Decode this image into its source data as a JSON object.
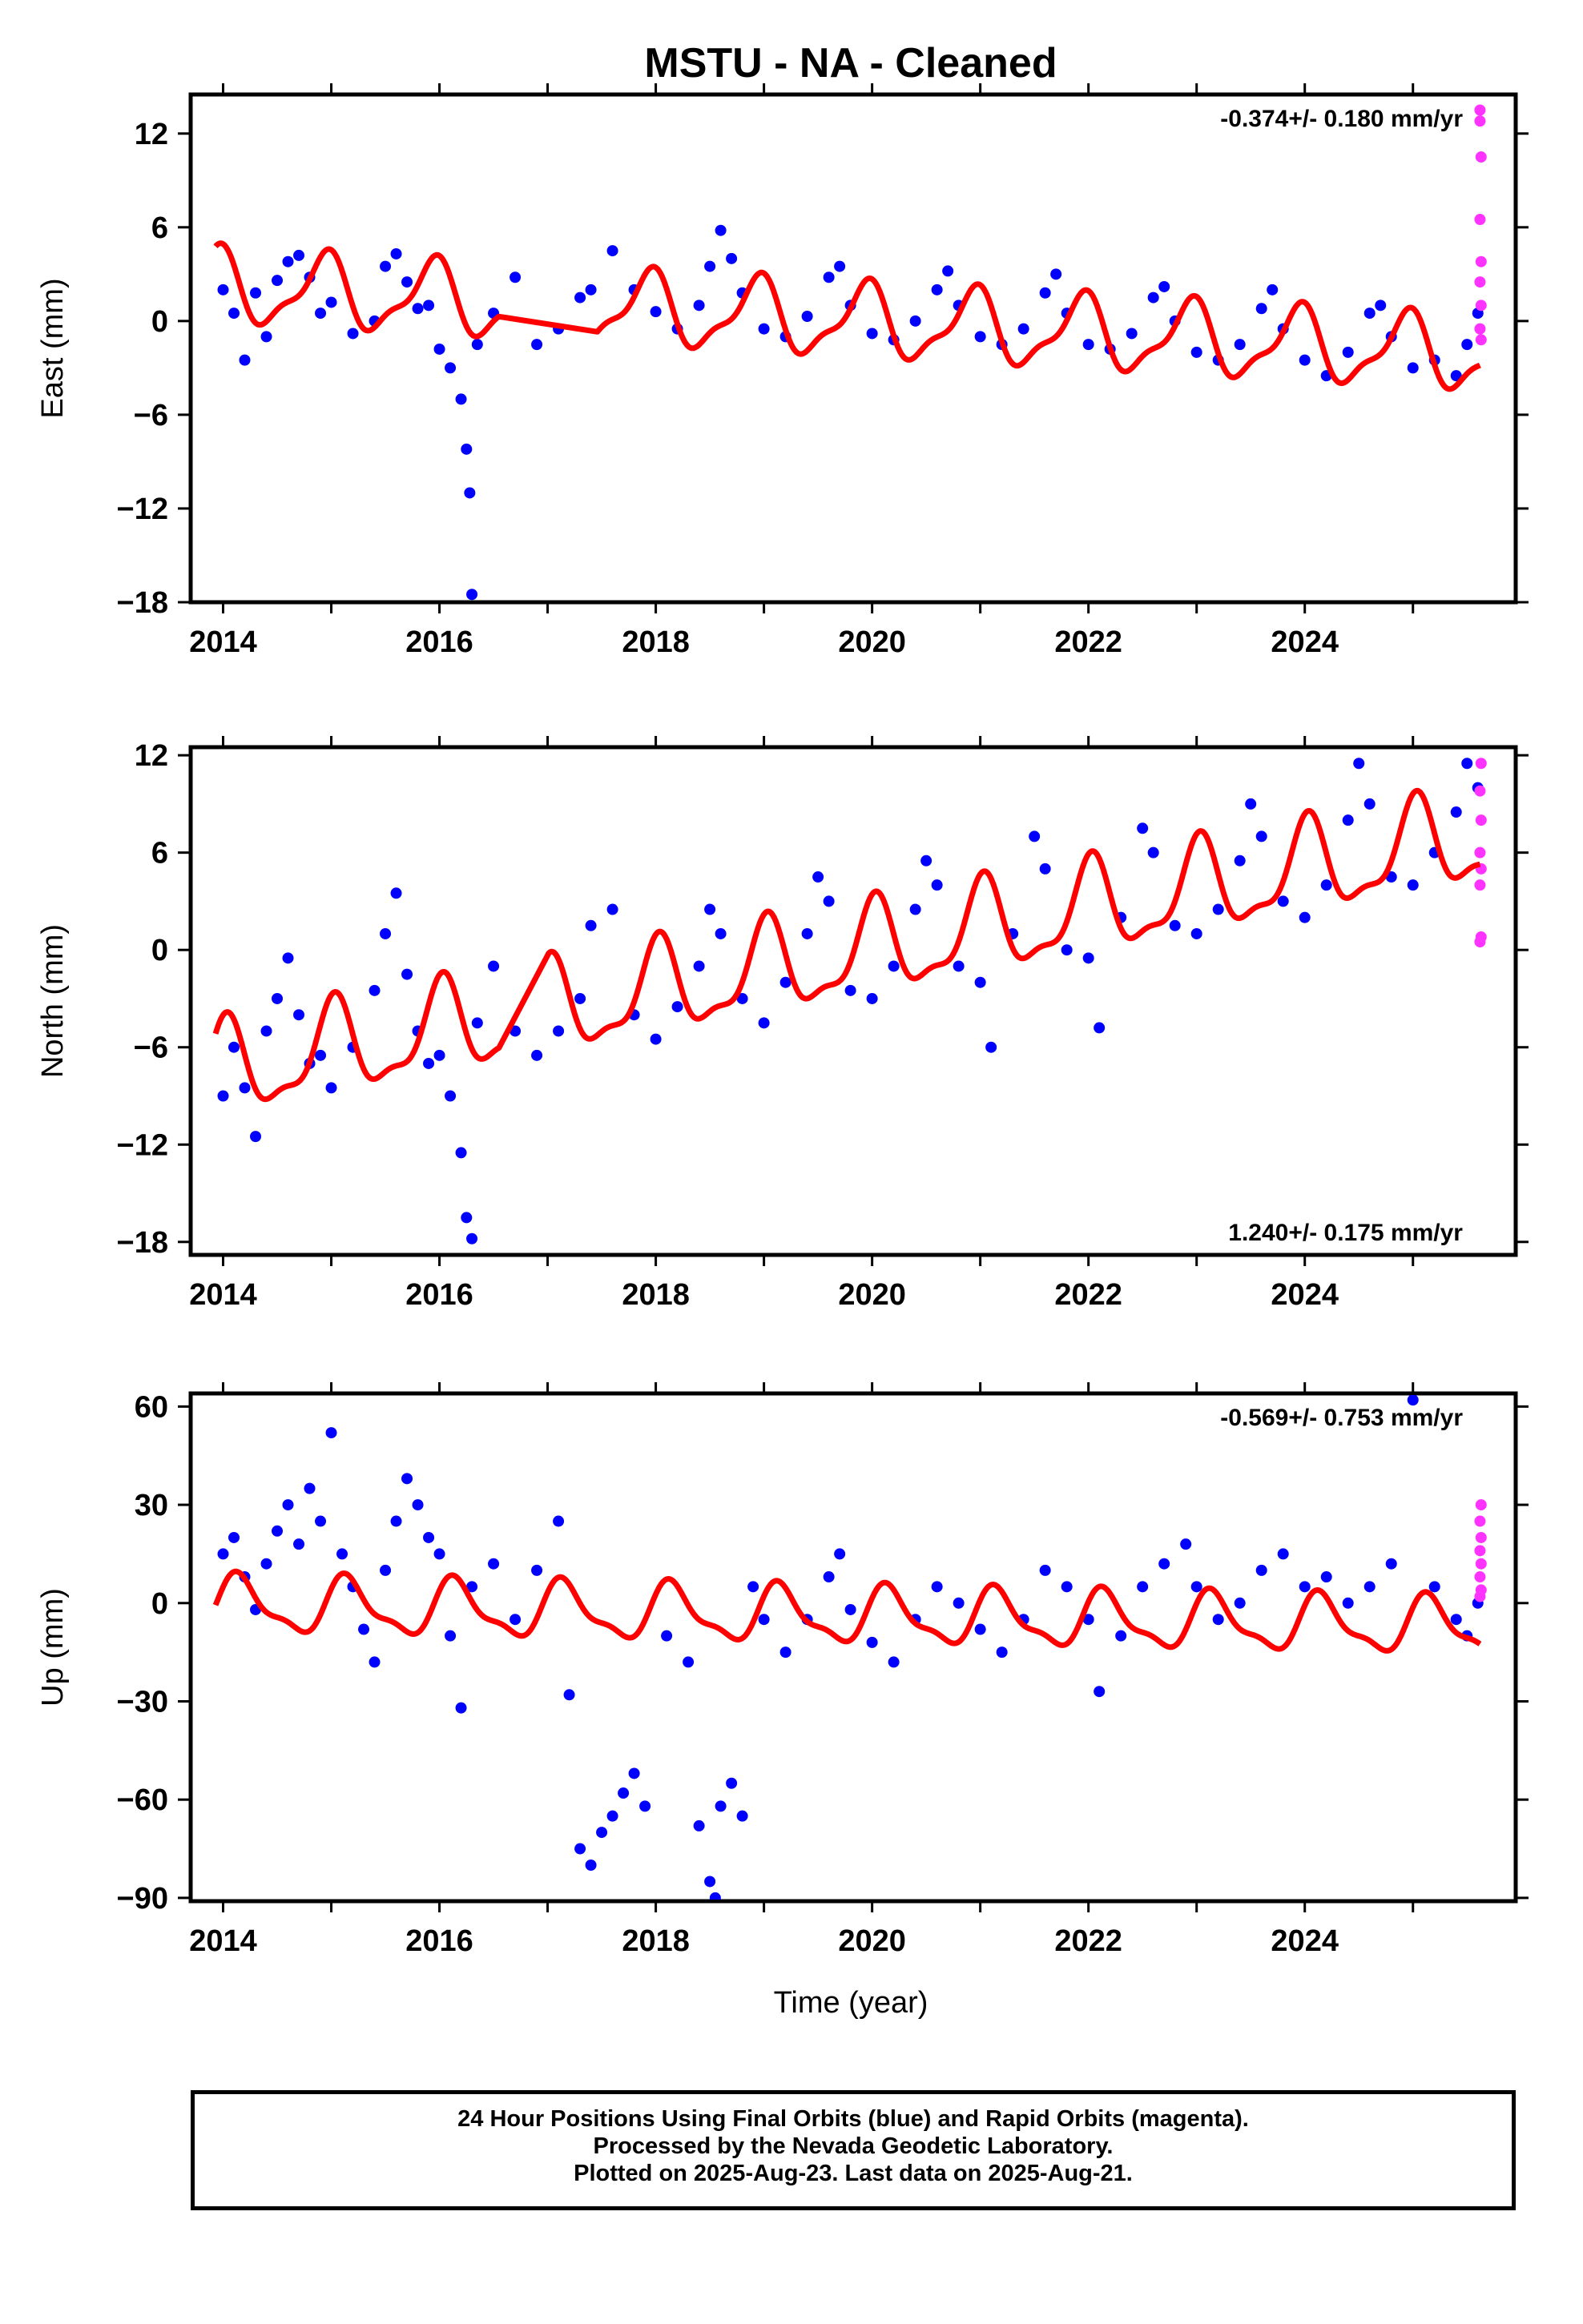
{
  "title": "MSTU  - NA - Cleaned",
  "xlabel": "Time (year)",
  "footer": {
    "line1": "24 Hour Positions Using Final Orbits (blue) and Rapid Orbits (magenta).",
    "line2": "Processed by the Nevada Geodetic Laboratory.",
    "line3": "Plotted on 2025-Aug-23. Last data on 2025-Aug-21."
  },
  "colors": {
    "final": "#0000ff",
    "rapid": "#ff33ff",
    "model": "#ff0000",
    "axis": "#000000"
  },
  "chart_data": [
    {
      "type": "scatter",
      "name": "east",
      "ylabel": "East (mm)",
      "rate": "-0.374+/- 0.180 mm/yr",
      "rate_position": "top-right",
      "xlim": [
        2013.7,
        2025.95
      ],
      "ylim": [
        -18,
        14.5
      ],
      "xticks": [
        2014,
        2016,
        2018,
        2020,
        2022,
        2024
      ],
      "yticks": [
        12,
        6,
        0,
        -6,
        -12,
        -18
      ],
      "model": {
        "x0": 2019.8,
        "trend": -0.374,
        "offset": 0.0,
        "annual": 2.2,
        "phase": 2.0,
        "gaps": [
          [
            2016.55,
            2017.45
          ]
        ]
      },
      "final_orbit_points": [
        [
          2014.0,
          2.0
        ],
        [
          2014.1,
          0.5
        ],
        [
          2014.2,
          -2.5
        ],
        [
          2014.3,
          1.8
        ],
        [
          2014.4,
          -1.0
        ],
        [
          2014.5,
          2.6
        ],
        [
          2014.6,
          3.8
        ],
        [
          2014.7,
          4.2
        ],
        [
          2014.8,
          2.8
        ],
        [
          2014.9,
          0.5
        ],
        [
          2015.0,
          1.2
        ],
        [
          2015.2,
          -0.8
        ],
        [
          2015.4,
          0.0
        ],
        [
          2015.5,
          3.5
        ],
        [
          2015.6,
          4.3
        ],
        [
          2015.7,
          2.5
        ],
        [
          2015.8,
          0.8
        ],
        [
          2015.9,
          1.0
        ],
        [
          2016.0,
          -1.8
        ],
        [
          2016.1,
          -3.0
        ],
        [
          2016.2,
          -5.0
        ],
        [
          2016.25,
          -8.2
        ],
        [
          2016.28,
          -11.0
        ],
        [
          2016.3,
          -17.5
        ],
        [
          2016.35,
          -1.5
        ],
        [
          2016.5,
          0.5
        ],
        [
          2016.7,
          2.8
        ],
        [
          2016.9,
          -1.5
        ],
        [
          2017.1,
          -0.5
        ],
        [
          2017.3,
          1.5
        ],
        [
          2017.4,
          2.0
        ],
        [
          2017.6,
          4.5
        ],
        [
          2017.8,
          2.0
        ],
        [
          2018.0,
          0.6
        ],
        [
          2018.2,
          -0.5
        ],
        [
          2018.4,
          1.0
        ],
        [
          2018.5,
          3.5
        ],
        [
          2018.6,
          5.8
        ],
        [
          2018.7,
          4.0
        ],
        [
          2018.8,
          1.8
        ],
        [
          2019.0,
          -0.5
        ],
        [
          2019.2,
          -1.0
        ],
        [
          2019.4,
          0.3
        ],
        [
          2019.6,
          2.8
        ],
        [
          2019.7,
          3.5
        ],
        [
          2019.8,
          1.0
        ],
        [
          2020.0,
          -0.8
        ],
        [
          2020.2,
          -1.2
        ],
        [
          2020.4,
          0.0
        ],
        [
          2020.6,
          2.0
        ],
        [
          2020.7,
          3.2
        ],
        [
          2020.8,
          1.0
        ],
        [
          2021.0,
          -1.0
        ],
        [
          2021.2,
          -1.5
        ],
        [
          2021.4,
          -0.5
        ],
        [
          2021.6,
          1.8
        ],
        [
          2021.7,
          3.0
        ],
        [
          2021.8,
          0.5
        ],
        [
          2022.0,
          -1.5
        ],
        [
          2022.2,
          -1.8
        ],
        [
          2022.4,
          -0.8
        ],
        [
          2022.6,
          1.5
        ],
        [
          2022.7,
          2.2
        ],
        [
          2022.8,
          0.0
        ],
        [
          2023.0,
          -2.0
        ],
        [
          2023.2,
          -2.5
        ],
        [
          2023.4,
          -1.5
        ],
        [
          2023.6,
          0.8
        ],
        [
          2023.7,
          2.0
        ],
        [
          2023.8,
          -0.5
        ],
        [
          2024.0,
          -2.5
        ],
        [
          2024.2,
          -3.5
        ],
        [
          2024.4,
          -2.0
        ],
        [
          2024.6,
          0.5
        ],
        [
          2024.7,
          1.0
        ],
        [
          2024.8,
          -1.0
        ],
        [
          2025.0,
          -3.0
        ],
        [
          2025.2,
          -2.5
        ],
        [
          2025.4,
          -3.5
        ],
        [
          2025.5,
          -1.5
        ],
        [
          2025.6,
          0.5
        ]
      ],
      "rapid_orbit_points": [
        [
          2025.62,
          13.5
        ],
        [
          2025.63,
          10.5
        ],
        [
          2025.62,
          6.5
        ],
        [
          2025.63,
          3.8
        ],
        [
          2025.62,
          2.5
        ],
        [
          2025.63,
          1.0
        ],
        [
          2025.62,
          -0.5
        ],
        [
          2025.63,
          -1.2
        ],
        [
          2025.62,
          12.8
        ]
      ]
    },
    {
      "type": "scatter",
      "name": "north",
      "ylabel": "North (mm)",
      "rate": "1.240+/- 0.175 mm/yr",
      "rate_position": "bottom-right",
      "xlim": [
        2013.7,
        2025.95
      ],
      "ylim": [
        -18.8,
        12.5
      ],
      "xticks": [
        2014,
        2016,
        2018,
        2020,
        2022,
        2024
      ],
      "yticks": [
        12,
        6,
        0,
        -6,
        -12,
        -18
      ],
      "model": {
        "x0": 2019.8,
        "trend": 1.24,
        "offset": -0.3,
        "annual": 2.7,
        "phase": 1.45,
        "gaps": [
          [
            2016.55,
            2017.0
          ]
        ]
      },
      "final_orbit_points": [
        [
          2014.0,
          -9.0
        ],
        [
          2014.1,
          -6.0
        ],
        [
          2014.2,
          -8.5
        ],
        [
          2014.3,
          -11.5
        ],
        [
          2014.4,
          -5.0
        ],
        [
          2014.5,
          -3.0
        ],
        [
          2014.6,
          -0.5
        ],
        [
          2014.7,
          -4.0
        ],
        [
          2014.8,
          -7.0
        ],
        [
          2014.9,
          -6.5
        ],
        [
          2015.0,
          -8.5
        ],
        [
          2015.2,
          -6.0
        ],
        [
          2015.4,
          -2.5
        ],
        [
          2015.5,
          1.0
        ],
        [
          2015.6,
          3.5
        ],
        [
          2015.7,
          -1.5
        ],
        [
          2015.8,
          -5.0
        ],
        [
          2015.9,
          -7.0
        ],
        [
          2016.0,
          -6.5
        ],
        [
          2016.1,
          -9.0
        ],
        [
          2016.2,
          -12.5
        ],
        [
          2016.25,
          -16.5
        ],
        [
          2016.3,
          -17.8
        ],
        [
          2016.35,
          -4.5
        ],
        [
          2016.5,
          -1.0
        ],
        [
          2016.7,
          -5.0
        ],
        [
          2016.9,
          -6.5
        ],
        [
          2017.1,
          -5.0
        ],
        [
          2017.3,
          -3.0
        ],
        [
          2017.4,
          1.5
        ],
        [
          2017.6,
          2.5
        ],
        [
          2017.8,
          -4.0
        ],
        [
          2018.0,
          -5.5
        ],
        [
          2018.2,
          -3.5
        ],
        [
          2018.4,
          -1.0
        ],
        [
          2018.5,
          2.5
        ],
        [
          2018.6,
          1.0
        ],
        [
          2018.8,
          -3.0
        ],
        [
          2019.0,
          -4.5
        ],
        [
          2019.2,
          -2.0
        ],
        [
          2019.4,
          1.0
        ],
        [
          2019.5,
          4.5
        ],
        [
          2019.6,
          3.0
        ],
        [
          2019.8,
          -2.5
        ],
        [
          2020.0,
          -3.0
        ],
        [
          2020.2,
          -1.0
        ],
        [
          2020.4,
          2.5
        ],
        [
          2020.5,
          5.5
        ],
        [
          2020.6,
          4.0
        ],
        [
          2020.8,
          -1.0
        ],
        [
          2021.0,
          -2.0
        ],
        [
          2021.1,
          -6.0
        ],
        [
          2021.3,
          1.0
        ],
        [
          2021.5,
          7.0
        ],
        [
          2021.6,
          5.0
        ],
        [
          2021.8,
          0.0
        ],
        [
          2022.0,
          -0.5
        ],
        [
          2022.1,
          -4.8
        ],
        [
          2022.3,
          2.0
        ],
        [
          2022.5,
          7.5
        ],
        [
          2022.6,
          6.0
        ],
        [
          2022.8,
          1.5
        ],
        [
          2023.0,
          1.0
        ],
        [
          2023.2,
          2.5
        ],
        [
          2023.4,
          5.5
        ],
        [
          2023.5,
          9.0
        ],
        [
          2023.6,
          7.0
        ],
        [
          2023.8,
          3.0
        ],
        [
          2024.0,
          2.0
        ],
        [
          2024.2,
          4.0
        ],
        [
          2024.4,
          8.0
        ],
        [
          2024.5,
          11.5
        ],
        [
          2024.6,
          9.0
        ],
        [
          2024.8,
          4.5
        ],
        [
          2025.0,
          4.0
        ],
        [
          2025.2,
          6.0
        ],
        [
          2025.4,
          8.5
        ],
        [
          2025.5,
          11.5
        ],
        [
          2025.6,
          10.0
        ]
      ],
      "rapid_orbit_points": [
        [
          2025.63,
          11.5
        ],
        [
          2025.62,
          9.8
        ],
        [
          2025.63,
          8.0
        ],
        [
          2025.62,
          6.0
        ],
        [
          2025.63,
          5.0
        ],
        [
          2025.62,
          4.0
        ],
        [
          2025.63,
          0.8
        ],
        [
          2025.62,
          0.5
        ]
      ]
    },
    {
      "type": "scatter",
      "name": "up",
      "ylabel": "Up (mm)",
      "rate": "-0.569+/- 0.753 mm/yr",
      "rate_position": "top-right",
      "xlim": [
        2013.7,
        2025.95
      ],
      "ylim": [
        -91,
        64
      ],
      "xticks": [
        2014,
        2016,
        2018,
        2020,
        2022,
        2024
      ],
      "yticks": [
        60,
        30,
        0,
        -30,
        -60,
        -90
      ],
      "model": {
        "x0": 2019.8,
        "trend": -0.569,
        "offset": -4.0,
        "annual": 8.0,
        "phase": 0.6,
        "gaps": []
      },
      "final_orbit_points": [
        [
          2014.0,
          15.0
        ],
        [
          2014.1,
          20.0
        ],
        [
          2014.2,
          8.0
        ],
        [
          2014.3,
          -2.0
        ],
        [
          2014.4,
          12.0
        ],
        [
          2014.5,
          22.0
        ],
        [
          2014.6,
          30.0
        ],
        [
          2014.7,
          18.0
        ],
        [
          2014.8,
          35.0
        ],
        [
          2014.9,
          25.0
        ],
        [
          2015.0,
          52.0
        ],
        [
          2015.1,
          15.0
        ],
        [
          2015.2,
          5.0
        ],
        [
          2015.3,
          -8.0
        ],
        [
          2015.4,
          -18.0
        ],
        [
          2015.5,
          10.0
        ],
        [
          2015.6,
          25.0
        ],
        [
          2015.7,
          38.0
        ],
        [
          2015.8,
          30.0
        ],
        [
          2015.9,
          20.0
        ],
        [
          2016.0,
          15.0
        ],
        [
          2016.1,
          -10.0
        ],
        [
          2016.2,
          -32.0
        ],
        [
          2016.3,
          5.0
        ],
        [
          2016.5,
          12.0
        ],
        [
          2016.7,
          -5.0
        ],
        [
          2016.9,
          10.0
        ],
        [
          2017.1,
          25.0
        ],
        [
          2017.2,
          -28.0
        ],
        [
          2017.3,
          -75.0
        ],
        [
          2017.4,
          -80.0
        ],
        [
          2017.5,
          -70.0
        ],
        [
          2017.6,
          -65.0
        ],
        [
          2017.7,
          -58.0
        ],
        [
          2017.8,
          -52.0
        ],
        [
          2017.9,
          -62.0
        ],
        [
          2018.1,
          -10.0
        ],
        [
          2018.3,
          -18.0
        ],
        [
          2018.4,
          -68.0
        ],
        [
          2018.5,
          -85.0
        ],
        [
          2018.55,
          -90.0
        ],
        [
          2018.6,
          -62.0
        ],
        [
          2018.7,
          -55.0
        ],
        [
          2018.8,
          -65.0
        ],
        [
          2018.9,
          5.0
        ],
        [
          2019.0,
          -5.0
        ],
        [
          2019.2,
          -15.0
        ],
        [
          2019.4,
          -5.0
        ],
        [
          2019.6,
          8.0
        ],
        [
          2019.7,
          15.0
        ],
        [
          2019.8,
          -2.0
        ],
        [
          2020.0,
          -12.0
        ],
        [
          2020.2,
          -18.0
        ],
        [
          2020.4,
          -5.0
        ],
        [
          2020.6,
          5.0
        ],
        [
          2020.8,
          0.0
        ],
        [
          2021.0,
          -8.0
        ],
        [
          2021.2,
          -15.0
        ],
        [
          2021.4,
          -5.0
        ],
        [
          2021.6,
          10.0
        ],
        [
          2021.8,
          5.0
        ],
        [
          2022.0,
          -5.0
        ],
        [
          2022.1,
          -27.0
        ],
        [
          2022.3,
          -10.0
        ],
        [
          2022.5,
          5.0
        ],
        [
          2022.7,
          12.0
        ],
        [
          2022.9,
          18.0
        ],
        [
          2023.0,
          5.0
        ],
        [
          2023.2,
          -5.0
        ],
        [
          2023.4,
          0.0
        ],
        [
          2023.6,
          10.0
        ],
        [
          2023.8,
          15.0
        ],
        [
          2024.0,
          5.0
        ],
        [
          2024.2,
          8.0
        ],
        [
          2024.4,
          0.0
        ],
        [
          2024.6,
          5.0
        ],
        [
          2024.8,
          12.0
        ],
        [
          2025.0,
          62.0
        ],
        [
          2025.2,
          5.0
        ],
        [
          2025.4,
          -5.0
        ],
        [
          2025.5,
          -10.0
        ],
        [
          2025.6,
          0.0
        ]
      ],
      "rapid_orbit_points": [
        [
          2025.63,
          30.0
        ],
        [
          2025.62,
          25.0
        ],
        [
          2025.63,
          20.0
        ],
        [
          2025.62,
          16.0
        ],
        [
          2025.63,
          12.0
        ],
        [
          2025.62,
          8.0
        ],
        [
          2025.63,
          4.0
        ],
        [
          2025.62,
          2.0
        ]
      ]
    }
  ]
}
